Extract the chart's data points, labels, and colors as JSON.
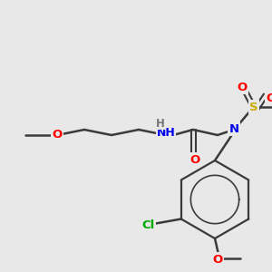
{
  "bg_color": "#e8e8e8",
  "bond_color": "#3a3a3a",
  "atom_colors": {
    "O": "#ff0000",
    "N": "#0000ee",
    "S": "#ccaa00",
    "Cl": "#00aa00",
    "H": "#777777",
    "C": "#3a3a3a"
  },
  "figsize": [
    3.0,
    3.0
  ],
  "dpi": 100,
  "xlim": [
    0,
    300
  ],
  "ylim": [
    0,
    300
  ]
}
